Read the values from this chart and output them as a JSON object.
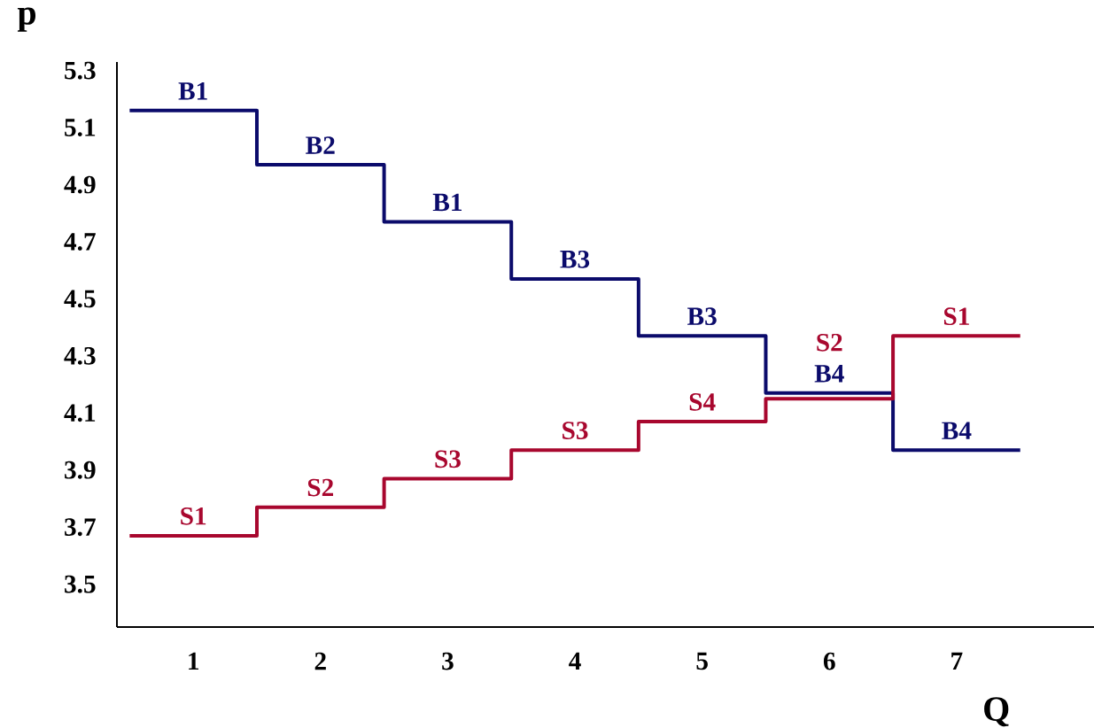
{
  "chart_data": {
    "type": "step",
    "xlabel": "Q",
    "ylabel": "p",
    "x": [
      0.5,
      1.5,
      2.5,
      3.5,
      4.5,
      5.5,
      6.5,
      7.5
    ],
    "series": [
      {
        "color": "#0b0b6b",
        "values": [
          5.16,
          4.97,
          4.77,
          4.57,
          4.37,
          4.17,
          3.97,
          3.97
        ]
      },
      {
        "color": "#a8072e",
        "values": [
          3.67,
          3.77,
          3.87,
          3.97,
          4.07,
          4.15,
          4.37,
          4.37
        ]
      }
    ],
    "xlim": [
      0.4,
      8.08
    ],
    "ylim": [
      3.35,
      5.33
    ],
    "xticks": [
      1,
      2,
      3,
      4,
      5,
      6,
      7
    ],
    "yticks": [
      3.5,
      3.7,
      3.9,
      4.1,
      4.3,
      4.5,
      4.7,
      4.9,
      5.1,
      5.3
    ],
    "annotations": [
      {
        "text": "B1",
        "x": 1,
        "y": 5.16
      },
      {
        "text": "B2",
        "x": 2,
        "y": 4.97
      },
      {
        "text": "B1",
        "x": 3,
        "y": 4.77
      },
      {
        "text": "B3",
        "x": 4,
        "y": 4.57
      },
      {
        "text": "B3",
        "x": 5,
        "y": 4.37
      },
      {
        "text": "B4",
        "x": 6,
        "y": 4.17
      },
      {
        "text": "B4",
        "x": 7,
        "y": 3.97
      },
      {
        "text": "S1",
        "x": 1,
        "y": 3.67
      },
      {
        "text": "S2",
        "x": 2,
        "y": 3.77
      },
      {
        "text": "S3",
        "x": 3,
        "y": 3.87
      },
      {
        "text": "S3",
        "x": 4,
        "y": 3.97
      },
      {
        "text": "S4",
        "x": 5,
        "y": 4.07
      },
      {
        "text": "S2",
        "x": 6,
        "y": 4.15
      },
      {
        "text": "S1",
        "x": 7,
        "y": 4.37
      }
    ]
  }
}
